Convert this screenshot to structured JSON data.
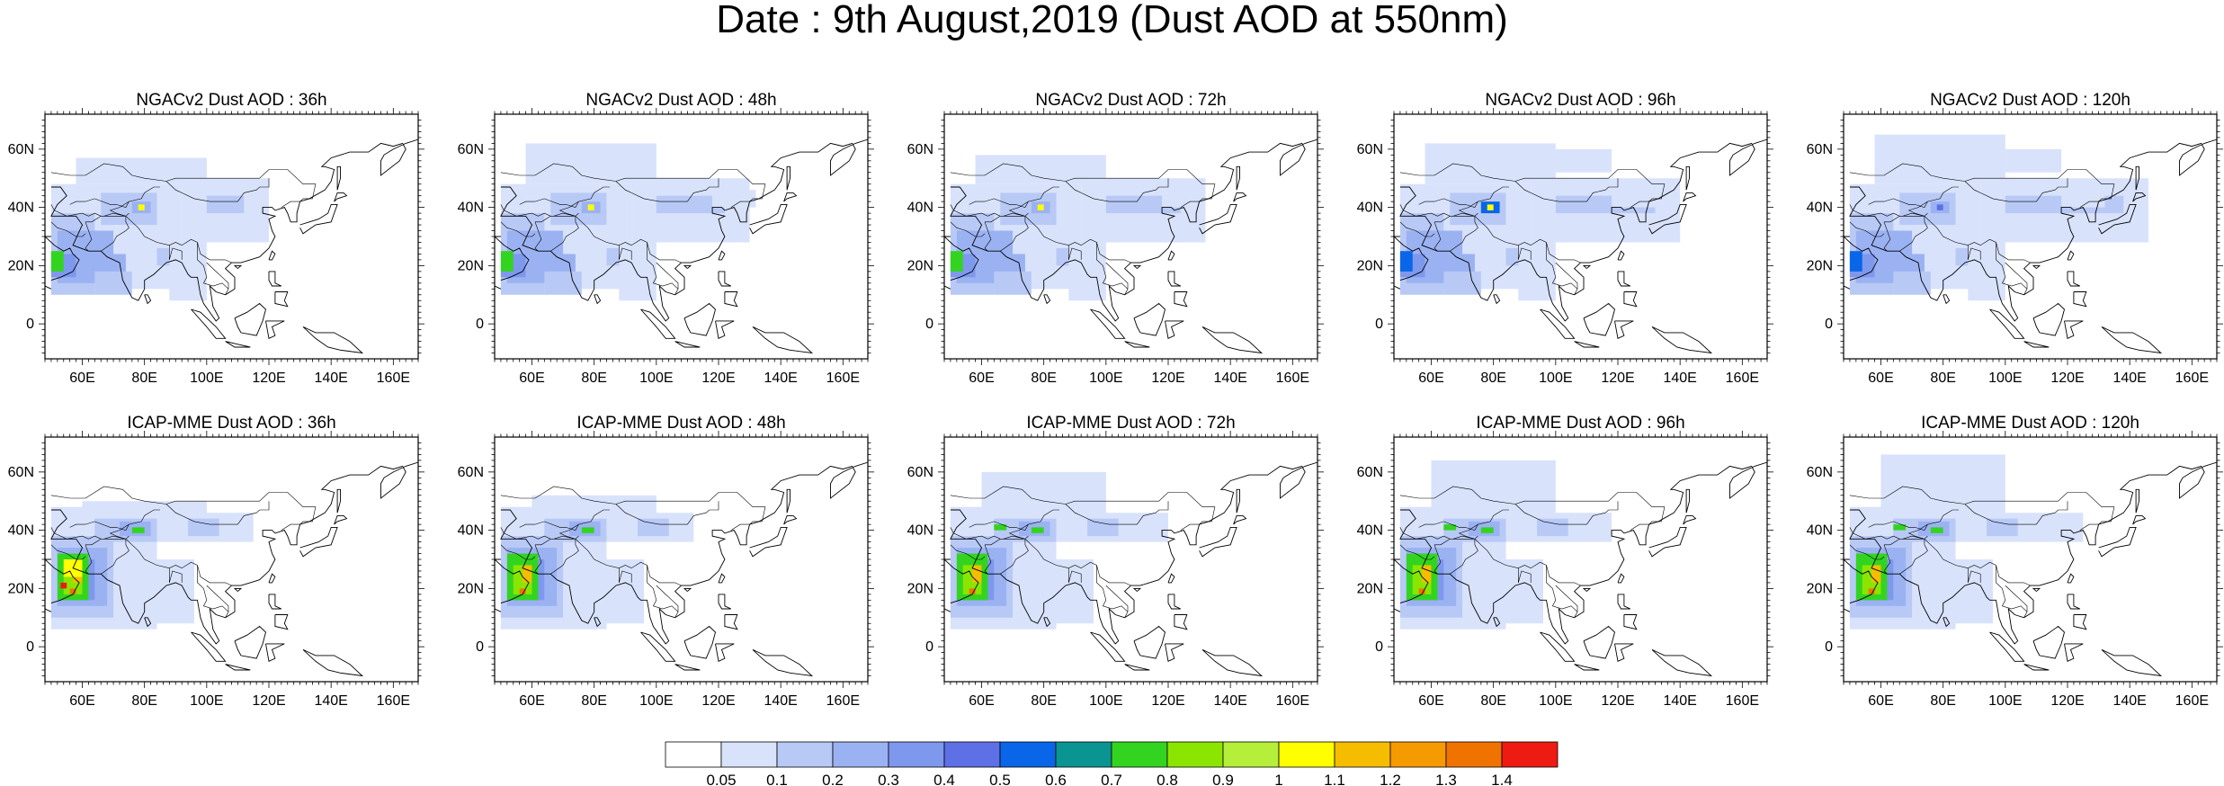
{
  "title": "Date : 9th August,2019 (Dust AOD at 550nm)",
  "lon_ticks": [
    "60E",
    "80E",
    "100E",
    "120E",
    "140E",
    "160E"
  ],
  "lat_ticks": [
    "60N",
    "40N",
    "20N",
    "0"
  ],
  "panels": [
    {
      "title": "NGACv2 Dust AOD : 36h",
      "model": "NGACv2",
      "lead": "36h"
    },
    {
      "title": "NGACv2 Dust AOD : 48h",
      "model": "NGACv2",
      "lead": "48h"
    },
    {
      "title": "NGACv2 Dust AOD : 72h",
      "model": "NGACv2",
      "lead": "72h"
    },
    {
      "title": "NGACv2 Dust AOD : 96h",
      "model": "NGACv2",
      "lead": "96h"
    },
    {
      "title": "NGACv2 Dust AOD : 120h",
      "model": "NGACv2",
      "lead": "120h"
    },
    {
      "title": "ICAP-MME Dust AOD : 36h",
      "model": "ICAP-MME",
      "lead": "36h"
    },
    {
      "title": "ICAP-MME Dust AOD : 48h",
      "model": "ICAP-MME",
      "lead": "48h"
    },
    {
      "title": "ICAP-MME Dust AOD : 72h",
      "model": "ICAP-MME",
      "lead": "72h"
    },
    {
      "title": "ICAP-MME Dust AOD : 96h",
      "model": "ICAP-MME",
      "lead": "96h"
    },
    {
      "title": "ICAP-MME Dust AOD : 120h",
      "model": "ICAP-MME",
      "lead": "120h"
    }
  ],
  "colorbar": {
    "labels": [
      "0.05",
      "0.1",
      "0.2",
      "0.3",
      "0.4",
      "0.5",
      "0.6",
      "0.7",
      "0.8",
      "0.9",
      "1",
      "1.1",
      "1.2",
      "1.3",
      "1.4"
    ],
    "colors": [
      "#ffffff",
      "#d8e2fb",
      "#b8c9f6",
      "#9bb2f2",
      "#7e98ee",
      "#5d70e6",
      "#0a66e8",
      "#0b9592",
      "#33d420",
      "#8ae600",
      "#b5ef3a",
      "#ffff00",
      "#f6bd00",
      "#f59a00",
      "#f07300",
      "#ee1b12"
    ]
  }
}
